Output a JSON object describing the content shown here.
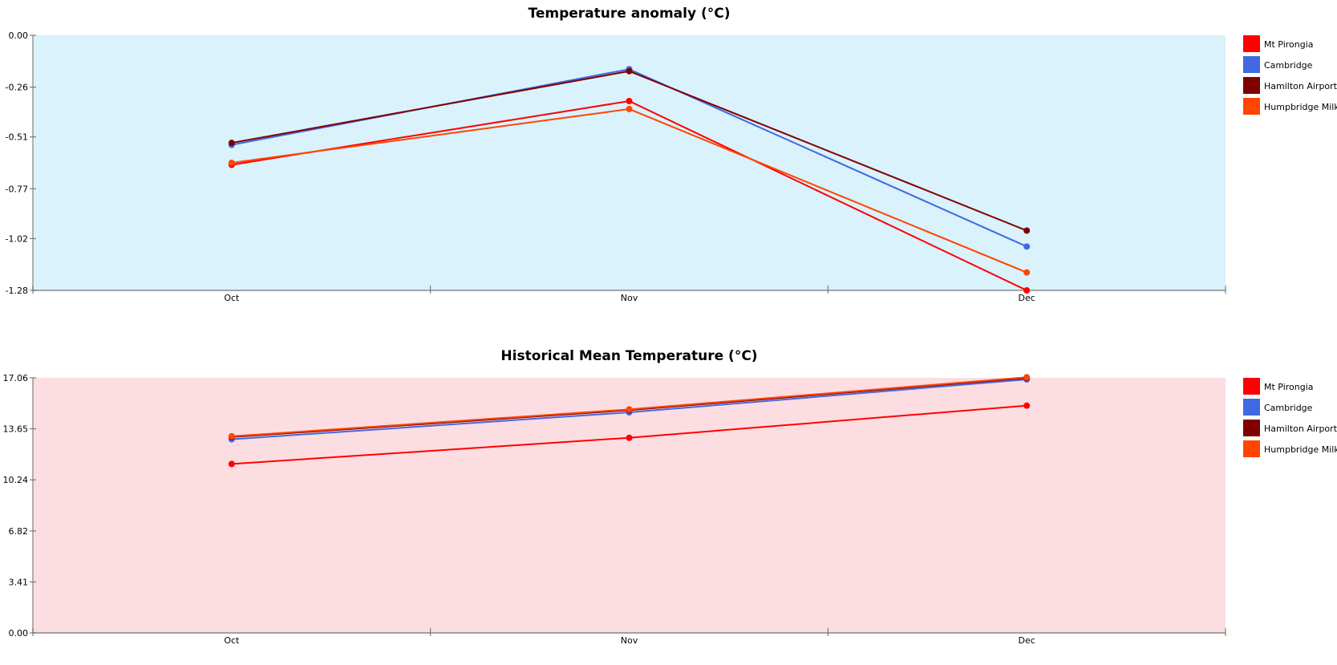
{
  "chart_data": [
    {
      "type": "line",
      "title": "Temperature anomaly (°C)",
      "xlabel": "",
      "ylabel": "",
      "categories": [
        "Oct",
        "Nov",
        "Dec"
      ],
      "ylim": [
        -1.28,
        0.0
      ],
      "yticks": [
        "0.00",
        "-0.26",
        "-0.51",
        "-0.77",
        "-1.02",
        "-1.28"
      ],
      "yticks_values": [
        0.0,
        -0.26,
        -0.51,
        -0.77,
        -1.02,
        -1.28
      ],
      "background": "#d9f2fc",
      "legend_position": "right",
      "grid": false,
      "series": [
        {
          "name": "Mt Pirongia",
          "color": "#ff0000",
          "values": [
            -0.65,
            -0.33,
            -1.28
          ]
        },
        {
          "name": "Cambridge",
          "color": "#4169e1",
          "values": [
            -0.55,
            -0.17,
            -1.06
          ]
        },
        {
          "name": "Hamilton Airport",
          "color": "#800000",
          "values": [
            -0.54,
            -0.18,
            -0.98
          ]
        },
        {
          "name": "Humpbridge Milk",
          "color": "#ff4500",
          "values": [
            -0.64,
            -0.37,
            -1.19
          ]
        }
      ]
    },
    {
      "type": "line",
      "title": "Historical Mean Temperature (°C)",
      "xlabel": "",
      "ylabel": "",
      "categories": [
        "Oct",
        "Nov",
        "Dec"
      ],
      "ylim": [
        0.0,
        17.06
      ],
      "yticks": [
        "17.06",
        "13.65",
        "10.24",
        "6.82",
        "3.41",
        "0.00"
      ],
      "yticks_values": [
        17.06,
        13.65,
        10.24,
        6.82,
        3.41,
        0.0
      ],
      "background": "#fcdde2",
      "legend_position": "right",
      "grid": false,
      "series": [
        {
          "name": "Mt Pirongia",
          "color": "#ff0000",
          "values": [
            11.3,
            13.05,
            15.2
          ]
        },
        {
          "name": "Cambridge",
          "color": "#4169e1",
          "values": [
            12.95,
            14.75,
            16.95
          ]
        },
        {
          "name": "Hamilton Airport",
          "color": "#800000",
          "values": [
            13.1,
            14.9,
            17.05
          ]
        },
        {
          "name": "Humpbridge Milk",
          "color": "#ff4500",
          "values": [
            13.15,
            14.95,
            17.1
          ]
        }
      ]
    }
  ]
}
